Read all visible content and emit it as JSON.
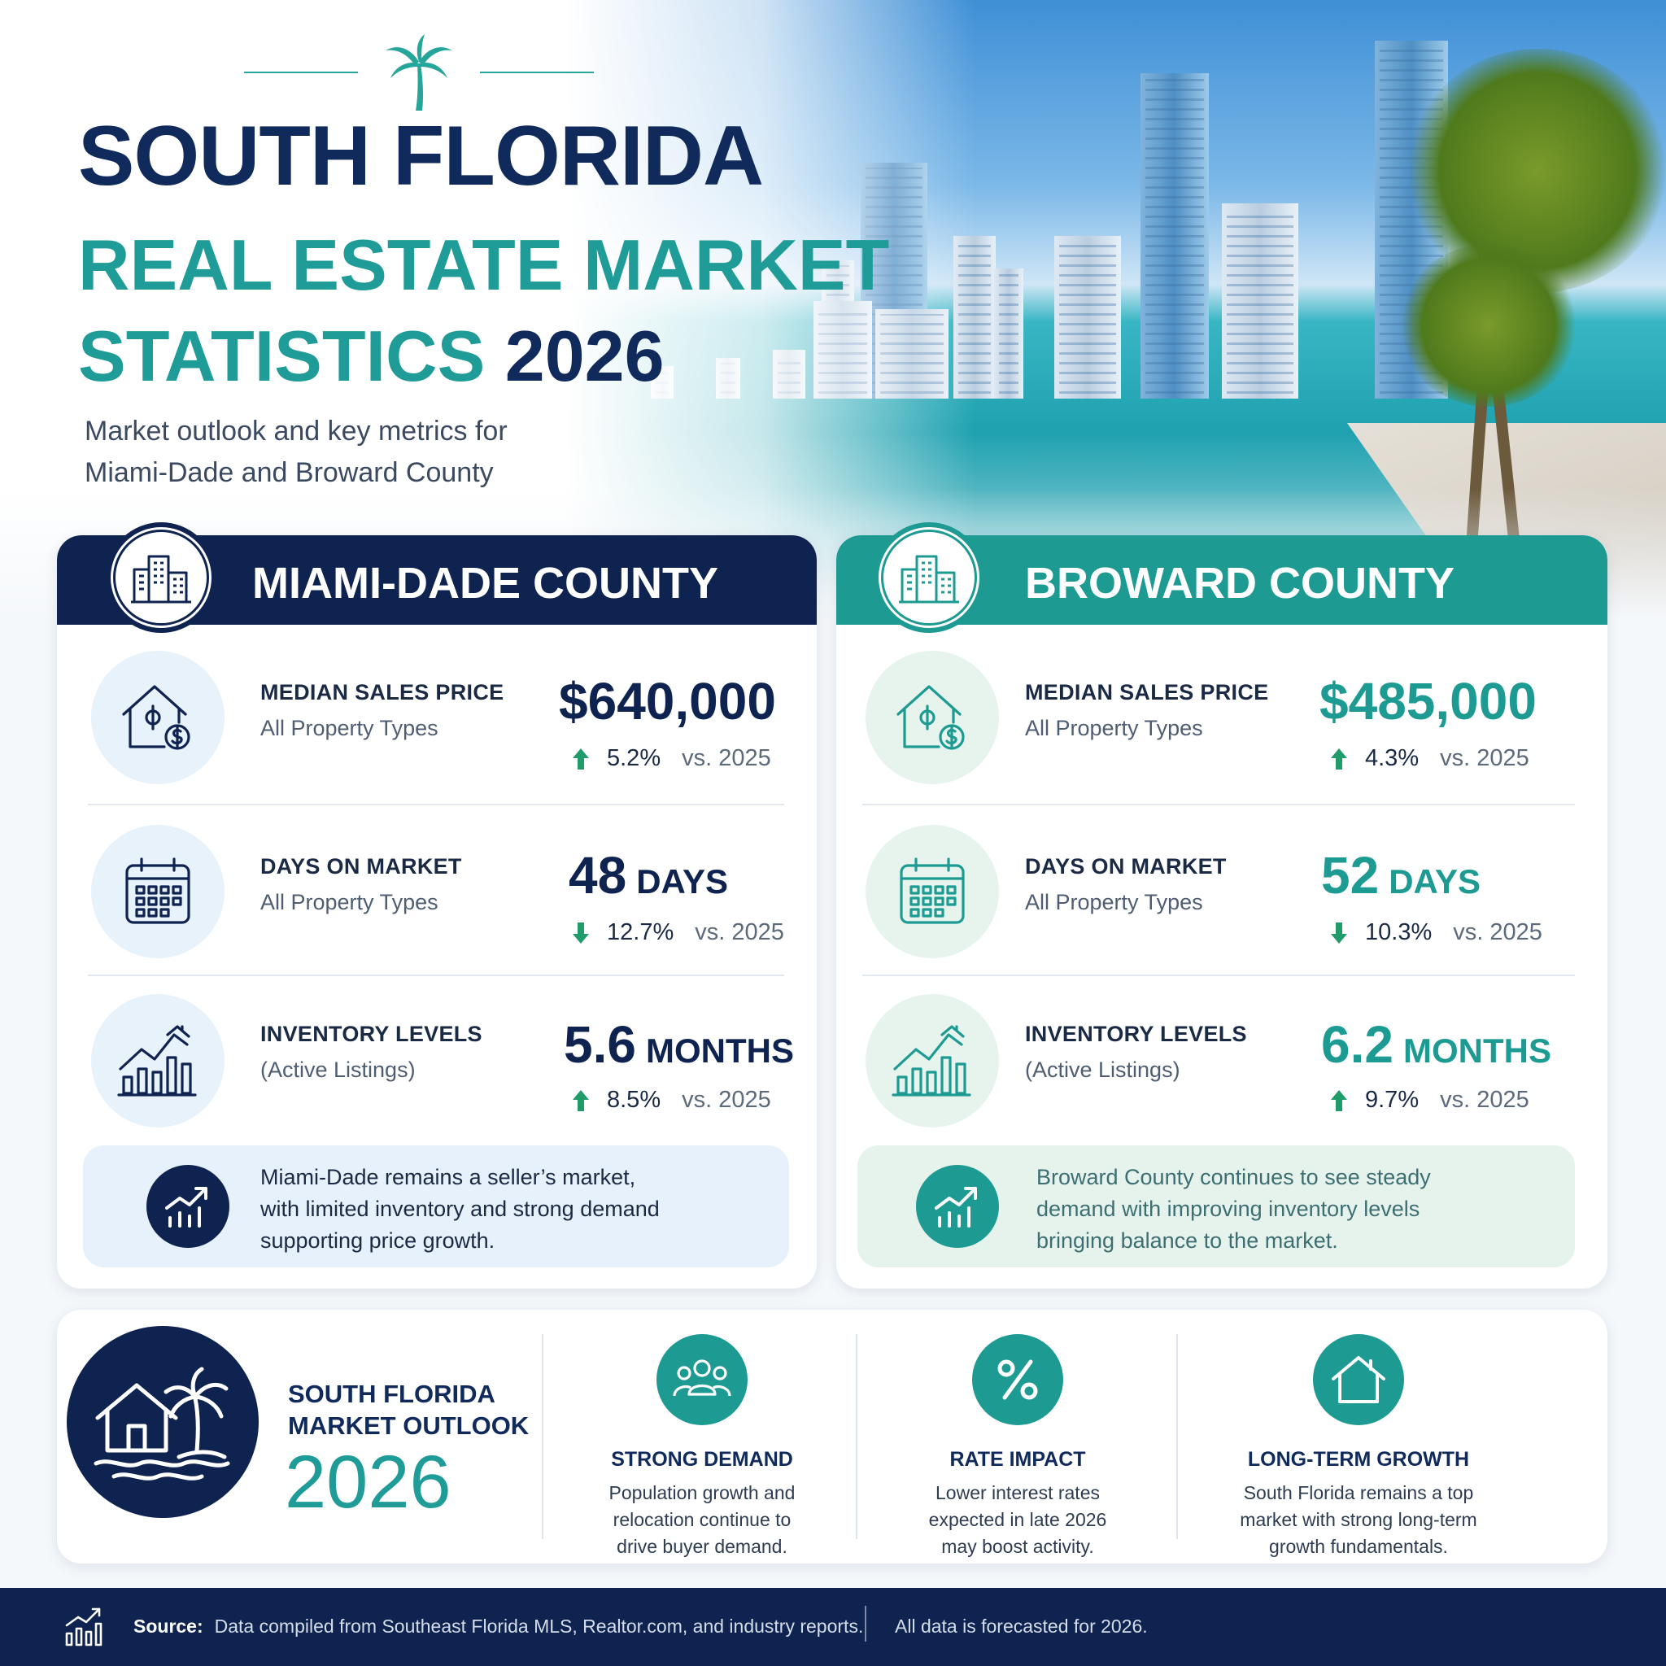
{
  "header": {
    "title_line1": "SOUTH FLORIDA",
    "title_line2": "REAL ESTATE MARKET",
    "title_line3": "STATISTICS",
    "title_year": "2026",
    "subtitle_line1": "Market outlook and key metrics for",
    "subtitle_line2": "Miami-Dade and Broward County",
    "logo_icon": "palm-tree-icon"
  },
  "colors": {
    "navy": "#0f2350",
    "teal": "#1d9a92",
    "up_arrow": "#1f9c6a"
  },
  "miami_dade": {
    "name": "MIAMI-DADE COUNTY",
    "icon": "buildings-icon",
    "metrics": [
      {
        "label": "MEDIAN SALES PRICE",
        "sub": "All Property Types",
        "value": "$640,000",
        "unit": "",
        "direction": "up",
        "change": "5.2%",
        "vs": "vs. 2025",
        "icon": "house-dollar-icon"
      },
      {
        "label": "DAYS ON MARKET",
        "sub": "All Property Types",
        "value": "48",
        "unit": "DAYS",
        "direction": "down",
        "change": "12.7%",
        "vs": "vs. 2025",
        "icon": "calendar-icon"
      },
      {
        "label": "INVENTORY LEVELS",
        "sub": "(Active Listings)",
        "value": "5.6",
        "unit": "MONTHS",
        "direction": "up",
        "change": "8.5%",
        "vs": "vs. 2025",
        "icon": "bar-chart-house-icon"
      }
    ],
    "note_line1": "Miami-Dade remains a seller’s market,",
    "note_line2": "with limited inventory and strong demand",
    "note_line3": "supporting price growth.",
    "note_icon": "trend-chart-icon"
  },
  "broward": {
    "name": "BROWARD COUNTY",
    "icon": "buildings-icon",
    "metrics": [
      {
        "label": "MEDIAN SALES PRICE",
        "sub": "All Property Types",
        "value": "$485,000",
        "unit": "",
        "direction": "up",
        "change": "4.3%",
        "vs": "vs. 2025",
        "icon": "house-dollar-icon"
      },
      {
        "label": "DAYS ON MARKET",
        "sub": "All Property Types",
        "value": "52",
        "unit": "DAYS",
        "direction": "down",
        "change": "10.3%",
        "vs": "vs. 2025",
        "icon": "calendar-icon"
      },
      {
        "label": "INVENTORY LEVELS",
        "sub": "(Active Listings)",
        "value": "6.2",
        "unit": "MONTHS",
        "direction": "up",
        "change": "9.7%",
        "vs": "vs. 2025",
        "icon": "bar-chart-house-icon"
      }
    ],
    "note_line1": "Broward County continues to see steady",
    "note_line2": "demand with improving inventory levels",
    "note_line3": "bringing balance to the market.",
    "note_icon": "trend-chart-icon"
  },
  "outlook": {
    "title_line1": "SOUTH FLORIDA",
    "title_line2": "MARKET OUTLOOK",
    "year": "2026",
    "icon": "house-palm-icon",
    "pillars": [
      {
        "title": "STRONG DEMAND",
        "line1": "Population growth and",
        "line2": "relocation continue to",
        "line3": "drive buyer demand.",
        "icon": "people-icon"
      },
      {
        "title": "RATE IMPACT",
        "line1": "Lower interest rates",
        "line2": "expected in late 2026",
        "line3": "may boost activity.",
        "icon": "percent-icon"
      },
      {
        "title": "LONG-TERM GROWTH",
        "line1": "South Florida remains a top",
        "line2": "market with strong long-term",
        "line3": "growth fundamentals.",
        "icon": "house-icon"
      }
    ]
  },
  "footer": {
    "source_label": "Source:",
    "source_text": "Data compiled from Southeast Florida MLS, Realtor.com, and industry reports.",
    "disclaimer": "All data is forecasted for 2026.",
    "icon": "bar-chart-icon"
  }
}
